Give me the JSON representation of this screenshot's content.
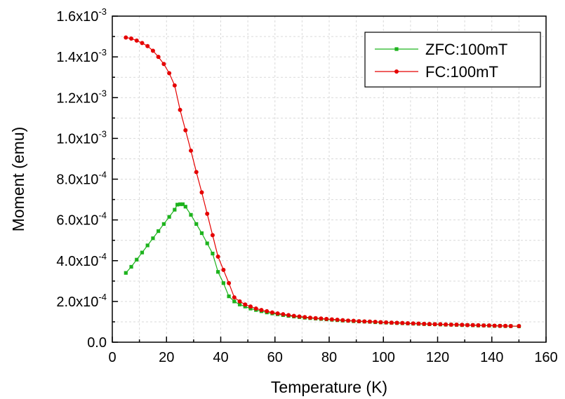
{
  "chart_data": {
    "type": "line",
    "xlabel": "Temperature (K)",
    "ylabel": "Moment (emu)",
    "xlim": [
      0,
      160
    ],
    "ylim": [
      0,
      0.0016
    ],
    "grid": true,
    "legend_position": "top-right",
    "x_ticks": [
      0,
      20,
      40,
      60,
      80,
      100,
      120,
      140,
      160
    ],
    "x_tick_labels": [
      "0",
      "20",
      "40",
      "60",
      "80",
      "100",
      "120",
      "140",
      "160"
    ],
    "y_ticks": [
      0,
      0.0002,
      0.0004,
      0.0006,
      0.0008,
      0.001,
      0.0012,
      0.0014,
      0.0016
    ],
    "y_tick_labels": [
      {
        "mantissa": "0.0",
        "exponent": ""
      },
      {
        "mantissa": "2.0x10",
        "exponent": "-4"
      },
      {
        "mantissa": "4.0x10",
        "exponent": "-4"
      },
      {
        "mantissa": "6.0x10",
        "exponent": "-4"
      },
      {
        "mantissa": "8.0x10",
        "exponent": "-4"
      },
      {
        "mantissa": "1.0x10",
        "exponent": "-3"
      },
      {
        "mantissa": "1.2x10",
        "exponent": "-3"
      },
      {
        "mantissa": "1.4x10",
        "exponent": "-3"
      },
      {
        "mantissa": "1.6x10",
        "exponent": "-3"
      }
    ],
    "series": [
      {
        "name": "ZFC:100mT",
        "color": "#1db31d",
        "marker": "square",
        "x": [
          5,
          7,
          9,
          11,
          13,
          15,
          17,
          19,
          21,
          23,
          24,
          25,
          26,
          27,
          29,
          31,
          33,
          35,
          37,
          39,
          41,
          43,
          45,
          47,
          49,
          51,
          53,
          55,
          57,
          59,
          61,
          63,
          65,
          67,
          69,
          71,
          73,
          75,
          77,
          79,
          81,
          83,
          85,
          87,
          89,
          91,
          93,
          95,
          97,
          99,
          101,
          103,
          105,
          107,
          109,
          111,
          113,
          115,
          117,
          119,
          121,
          123,
          125,
          127,
          129,
          131,
          133,
          135,
          137,
          139,
          141,
          143,
          145,
          147,
          150
        ],
        "y": [
          0.00034,
          0.00037,
          0.000405,
          0.00044,
          0.000475,
          0.00051,
          0.000545,
          0.00058,
          0.000615,
          0.00065,
          0.000675,
          0.000677,
          0.000677,
          0.000665,
          0.000625,
          0.00058,
          0.000535,
          0.000485,
          0.000435,
          0.000345,
          0.00029,
          0.000225,
          0.0002,
          0.000185,
          0.000175,
          0.000165,
          0.000158,
          0.000152,
          0.000146,
          0.000141,
          0.000137,
          0.000133,
          0.000129,
          0.000126,
          0.000123,
          0.00012,
          0.000118,
          0.000116,
          0.000114,
          0.000112,
          0.00011,
          0.000108,
          0.000106,
          0.000105,
          0.000103,
          0.000102,
          0.000101,
          0.0001,
          9.8e-05,
          9.7e-05,
          9.6e-05,
          9.5e-05,
          9.4e-05,
          9.3e-05,
          9.2e-05,
          9.1e-05,
          9e-05,
          8.9e-05,
          8.8e-05,
          8.8e-05,
          8.7e-05,
          8.6e-05,
          8.6e-05,
          8.5e-05,
          8.4e-05,
          8.4e-05,
          8.3e-05,
          8.2e-05,
          8.2e-05,
          8.1e-05,
          8e-05,
          8e-05,
          7.9e-05,
          7.9e-05,
          7.8e-05
        ]
      },
      {
        "name": "FC:100mT",
        "color": "#e50000",
        "marker": "circle",
        "x": [
          5,
          7,
          9,
          11,
          13,
          15,
          17,
          19,
          21,
          23,
          25,
          27,
          29,
          31,
          33,
          35,
          37,
          39,
          41,
          43,
          45,
          47,
          49,
          51,
          53,
          55,
          57,
          59,
          61,
          63,
          65,
          67,
          69,
          71,
          73,
          75,
          77,
          79,
          81,
          83,
          85,
          87,
          89,
          91,
          93,
          95,
          97,
          99,
          101,
          103,
          105,
          107,
          109,
          111,
          113,
          115,
          117,
          119,
          121,
          123,
          125,
          127,
          129,
          131,
          133,
          135,
          137,
          139,
          141,
          143,
          145,
          147,
          150
        ],
        "y": [
          0.001495,
          0.00149,
          0.00148,
          0.001468,
          0.001453,
          0.00143,
          0.0014,
          0.001365,
          0.00132,
          0.00126,
          0.00114,
          0.00104,
          0.00094,
          0.000835,
          0.000735,
          0.00063,
          0.000525,
          0.00042,
          0.000355,
          0.00029,
          0.00022,
          0.0002,
          0.000185,
          0.000175,
          0.000165,
          0.000158,
          0.000152,
          0.000146,
          0.000141,
          0.000137,
          0.000133,
          0.000129,
          0.000126,
          0.000123,
          0.00012,
          0.000118,
          0.000116,
          0.000114,
          0.000112,
          0.00011,
          0.000108,
          0.000106,
          0.000105,
          0.000103,
          0.000102,
          0.000101,
          0.0001,
          9.8e-05,
          9.7e-05,
          9.6e-05,
          9.5e-05,
          9.4e-05,
          9.3e-05,
          9.2e-05,
          9.1e-05,
          9e-05,
          8.9e-05,
          8.8e-05,
          8.8e-05,
          8.7e-05,
          8.6e-05,
          8.6e-05,
          8.5e-05,
          8.4e-05,
          8.4e-05,
          8.3e-05,
          8.2e-05,
          8.2e-05,
          8.1e-05,
          8e-05,
          8e-05,
          7.9e-05,
          7.9e-05
        ]
      }
    ]
  }
}
